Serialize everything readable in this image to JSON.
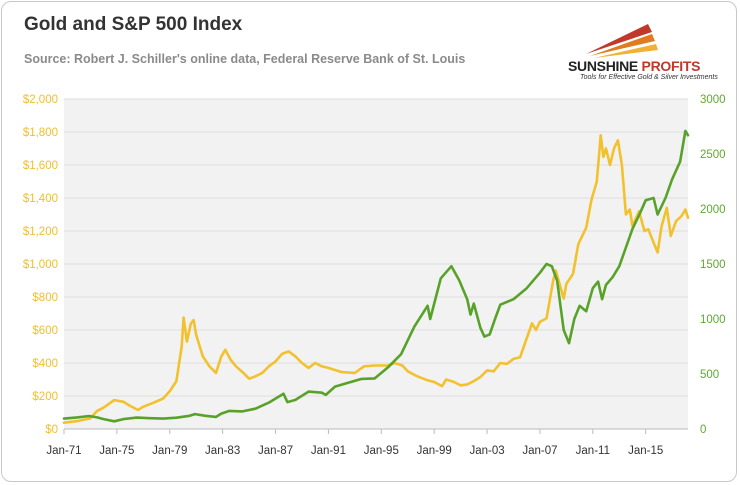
{
  "header": {
    "title": "Gold and S&P 500 Index",
    "subtitle": "Source: Robert J. Schiller's online data, Federal Reserve Bank of St. Louis"
  },
  "logo": {
    "name_part1": "SUNSHINE",
    "name_part2": " PROFITS",
    "tagline": "Tools for Effective Gold & Silver Investments"
  },
  "colors": {
    "gold": "#f2c12e",
    "sp500": "#58a22a",
    "grid": "#dddddd",
    "plot_bg": "#f2f2f2"
  },
  "chart_data": {
    "type": "line",
    "title": "Gold and S&P 500 Index",
    "x_ticks": [
      "Jan-71",
      "Jan-75",
      "Jan-79",
      "Jan-83",
      "Jan-87",
      "Jan-91",
      "Jan-95",
      "Jan-99",
      "Jan-03",
      "Jan-07",
      "Jan-11",
      "Jan-15"
    ],
    "x_range": [
      1971.0,
      2018.2
    ],
    "y_left": {
      "ticks": [
        "$0",
        "$200",
        "$400",
        "$600",
        "$800",
        "$1,000",
        "$1,200",
        "$1,400",
        "$1,600",
        "$1,800",
        "$2,000"
      ],
      "range": [
        0,
        2000
      ]
    },
    "y_right": {
      "ticks": [
        "0",
        "500",
        "1000",
        "1500",
        "2000",
        "2500",
        "3000"
      ],
      "range": [
        0,
        3000
      ]
    },
    "grid": true,
    "series": [
      {
        "axis": "left",
        "points": [
          [
            1971.0,
            38
          ],
          [
            1972.0,
            48
          ],
          [
            1973.0,
            65
          ],
          [
            1973.5,
            110
          ],
          [
            1974.0,
            130
          ],
          [
            1974.8,
            175
          ],
          [
            1975.5,
            165
          ],
          [
            1976.0,
            140
          ],
          [
            1976.6,
            115
          ],
          [
            1977.0,
            135
          ],
          [
            1977.8,
            160
          ],
          [
            1978.5,
            185
          ],
          [
            1979.0,
            230
          ],
          [
            1979.5,
            290
          ],
          [
            1979.9,
            500
          ],
          [
            1980.05,
            675
          ],
          [
            1980.3,
            530
          ],
          [
            1980.6,
            640
          ],
          [
            1980.8,
            660
          ],
          [
            1981.0,
            570
          ],
          [
            1981.5,
            440
          ],
          [
            1982.0,
            380
          ],
          [
            1982.5,
            340
          ],
          [
            1982.9,
            440
          ],
          [
            1983.2,
            480
          ],
          [
            1983.6,
            420
          ],
          [
            1984.0,
            380
          ],
          [
            1984.5,
            345
          ],
          [
            1985.0,
            305
          ],
          [
            1985.5,
            320
          ],
          [
            1986.0,
            340
          ],
          [
            1986.5,
            380
          ],
          [
            1987.0,
            410
          ],
          [
            1987.5,
            455
          ],
          [
            1988.0,
            470
          ],
          [
            1988.5,
            440
          ],
          [
            1989.0,
            400
          ],
          [
            1989.5,
            370
          ],
          [
            1990.0,
            400
          ],
          [
            1990.5,
            380
          ],
          [
            1991.0,
            370
          ],
          [
            1992.0,
            345
          ],
          [
            1993.0,
            340
          ],
          [
            1993.7,
            380
          ],
          [
            1994.5,
            385
          ],
          [
            1995.5,
            385
          ],
          [
            1996.0,
            400
          ],
          [
            1996.6,
            385
          ],
          [
            1997.0,
            350
          ],
          [
            1997.7,
            320
          ],
          [
            1998.5,
            295
          ],
          [
            1999.0,
            285
          ],
          [
            1999.6,
            260
          ],
          [
            1999.9,
            300
          ],
          [
            2000.5,
            285
          ],
          [
            2001.0,
            265
          ],
          [
            2001.5,
            270
          ],
          [
            2002.0,
            290
          ],
          [
            2002.5,
            315
          ],
          [
            2003.0,
            355
          ],
          [
            2003.5,
            350
          ],
          [
            2004.0,
            400
          ],
          [
            2004.5,
            395
          ],
          [
            2005.0,
            425
          ],
          [
            2005.5,
            435
          ],
          [
            2006.0,
            550
          ],
          [
            2006.4,
            640
          ],
          [
            2006.7,
            600
          ],
          [
            2007.0,
            650
          ],
          [
            2007.5,
            670
          ],
          [
            2008.0,
            900
          ],
          [
            2008.2,
            960
          ],
          [
            2008.8,
            790
          ],
          [
            2009.0,
            880
          ],
          [
            2009.5,
            940
          ],
          [
            2009.9,
            1120
          ],
          [
            2010.5,
            1220
          ],
          [
            2010.9,
            1390
          ],
          [
            2011.3,
            1500
          ],
          [
            2011.6,
            1780
          ],
          [
            2011.8,
            1650
          ],
          [
            2012.0,
            1700
          ],
          [
            2012.3,
            1600
          ],
          [
            2012.6,
            1700
          ],
          [
            2012.9,
            1750
          ],
          [
            2013.2,
            1600
          ],
          [
            2013.5,
            1300
          ],
          [
            2013.8,
            1330
          ],
          [
            2014.0,
            1230
          ],
          [
            2014.5,
            1320
          ],
          [
            2014.9,
            1200
          ],
          [
            2015.2,
            1210
          ],
          [
            2015.6,
            1130
          ],
          [
            2015.9,
            1070
          ],
          [
            2016.2,
            1230
          ],
          [
            2016.6,
            1340
          ],
          [
            2016.9,
            1170
          ],
          [
            2017.3,
            1260
          ],
          [
            2017.7,
            1290
          ],
          [
            2018.0,
            1330
          ],
          [
            2018.2,
            1280
          ]
        ]
      },
      {
        "axis": "right",
        "points": [
          [
            1971.0,
            95
          ],
          [
            1972.0,
            105
          ],
          [
            1972.9,
            118
          ],
          [
            1973.5,
            105
          ],
          [
            1974.0,
            90
          ],
          [
            1974.8,
            70
          ],
          [
            1975.5,
            90
          ],
          [
            1976.5,
            104
          ],
          [
            1977.5,
            98
          ],
          [
            1978.5,
            95
          ],
          [
            1979.5,
            103
          ],
          [
            1980.5,
            120
          ],
          [
            1980.9,
            135
          ],
          [
            1981.7,
            120
          ],
          [
            1982.5,
            110
          ],
          [
            1982.9,
            140
          ],
          [
            1983.5,
            165
          ],
          [
            1984.5,
            160
          ],
          [
            1985.5,
            185
          ],
          [
            1986.5,
            240
          ],
          [
            1987.6,
            320
          ],
          [
            1987.9,
            245
          ],
          [
            1988.5,
            265
          ],
          [
            1989.5,
            340
          ],
          [
            1990.5,
            330
          ],
          [
            1990.8,
            310
          ],
          [
            1991.5,
            385
          ],
          [
            1992.5,
            420
          ],
          [
            1993.5,
            455
          ],
          [
            1994.5,
            460
          ],
          [
            1995.5,
            560
          ],
          [
            1996.5,
            680
          ],
          [
            1997.5,
            930
          ],
          [
            1998.5,
            1120
          ],
          [
            1998.7,
            1000
          ],
          [
            1999.5,
            1370
          ],
          [
            2000.3,
            1480
          ],
          [
            2000.9,
            1350
          ],
          [
            2001.5,
            1180
          ],
          [
            2001.75,
            1040
          ],
          [
            2002.0,
            1140
          ],
          [
            2002.5,
            920
          ],
          [
            2002.8,
            840
          ],
          [
            2003.2,
            860
          ],
          [
            2003.6,
            1000
          ],
          [
            2004.0,
            1130
          ],
          [
            2005.0,
            1180
          ],
          [
            2006.0,
            1280
          ],
          [
            2007.0,
            1420
          ],
          [
            2007.5,
            1500
          ],
          [
            2007.9,
            1480
          ],
          [
            2008.3,
            1350
          ],
          [
            2008.8,
            900
          ],
          [
            2009.2,
            780
          ],
          [
            2009.6,
            1000
          ],
          [
            2010.0,
            1120
          ],
          [
            2010.5,
            1070
          ],
          [
            2011.0,
            1280
          ],
          [
            2011.4,
            1340
          ],
          [
            2011.7,
            1180
          ],
          [
            2012.0,
            1310
          ],
          [
            2012.5,
            1380
          ],
          [
            2013.0,
            1480
          ],
          [
            2013.5,
            1650
          ],
          [
            2014.0,
            1820
          ],
          [
            2014.6,
            1970
          ],
          [
            2015.0,
            2080
          ],
          [
            2015.6,
            2100
          ],
          [
            2015.9,
            1950
          ],
          [
            2016.5,
            2100
          ],
          [
            2017.0,
            2270
          ],
          [
            2017.6,
            2430
          ],
          [
            2018.0,
            2710
          ],
          [
            2018.2,
            2670
          ]
        ]
      }
    ]
  }
}
